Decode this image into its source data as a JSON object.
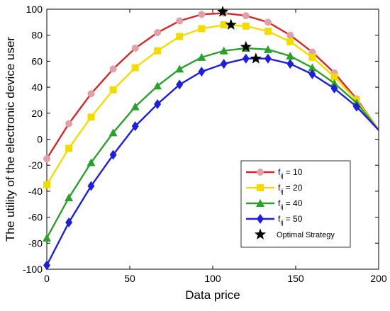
{
  "chart_data": {
    "type": "line",
    "title": "",
    "xlabel": "Data price",
    "ylabel": "The utility of the electronic device user",
    "xlim": [
      0,
      200
    ],
    "ylim": [
      -100,
      100
    ],
    "xticks": [
      0,
      50,
      100,
      150,
      200
    ],
    "yticks": [
      -100,
      -80,
      -60,
      -40,
      -20,
      0,
      20,
      40,
      60,
      80,
      100
    ],
    "grid": false,
    "legend_position": "bottom-right",
    "series": [
      {
        "name": "f_ij = 10",
        "legend_main": "f",
        "legend_sub": "ij",
        "legend_rest": " = 10",
        "color": "#d62728",
        "marker_color": "#e0a0a8",
        "marker": "circle",
        "x": [
          0,
          13.3,
          26.7,
          40,
          53.3,
          66.7,
          80,
          93.3,
          106.7,
          120,
          133.3,
          146.7,
          160,
          173.3,
          186.7
        ],
        "values": [
          -15,
          12,
          35,
          54,
          70,
          82,
          91,
          96,
          97,
          95,
          90,
          80,
          67,
          51,
          31
        ]
      },
      {
        "name": "f_ij = 20",
        "legend_main": "f",
        "legend_sub": "ij",
        "legend_rest": " = 20",
        "color": "#f2dc00",
        "marker_color": "#f2dc00",
        "marker": "square",
        "x": [
          0,
          13.3,
          26.7,
          40,
          53.3,
          66.7,
          80,
          93.3,
          106.7,
          120,
          133.3,
          146.7,
          160,
          173.3,
          186.7
        ],
        "values": [
          -35,
          -7,
          17,
          38,
          55,
          68,
          79,
          85,
          88,
          87,
          83,
          75,
          63,
          48,
          30
        ]
      },
      {
        "name": "f_ij = 40",
        "legend_main": "f",
        "legend_sub": "ij",
        "legend_rest": " = 40",
        "color": "#2ca02c",
        "marker_color": "#2ca02c",
        "marker": "triangle",
        "x": [
          0,
          13.3,
          26.7,
          40,
          53.3,
          66.7,
          80,
          93.3,
          106.7,
          120,
          133.3,
          146.7,
          160,
          173.3,
          186.7
        ],
        "values": [
          -76,
          -45,
          -18,
          5,
          25,
          41,
          54,
          63,
          68,
          70,
          69,
          64,
          55,
          43,
          28
        ]
      },
      {
        "name": "f_ij = 50",
        "legend_main": "f",
        "legend_sub": "ij",
        "legend_rest": " = 50",
        "color": "#1f1fd6",
        "marker_color": "#1f1fd6",
        "marker": "diamond",
        "x": [
          0,
          13.3,
          26.7,
          40,
          53.3,
          66.7,
          80,
          93.3,
          106.7,
          120,
          133.3,
          146.7,
          160,
          173.3,
          186.7
        ],
        "values": [
          -97,
          -64,
          -36,
          -12,
          10,
          27,
          42,
          52,
          58,
          62,
          62,
          58,
          50,
          39,
          25
        ]
      }
    ],
    "curve_end": {
      "x": 200,
      "y": 7
    },
    "optimal_strategy": {
      "name": "Optimal Strategy",
      "marker": "star",
      "color": "#000000",
      "points": [
        {
          "x": 106,
          "y": 98
        },
        {
          "x": 111,
          "y": 88
        },
        {
          "x": 120,
          "y": 71
        },
        {
          "x": 126,
          "y": 62
        }
      ]
    }
  }
}
